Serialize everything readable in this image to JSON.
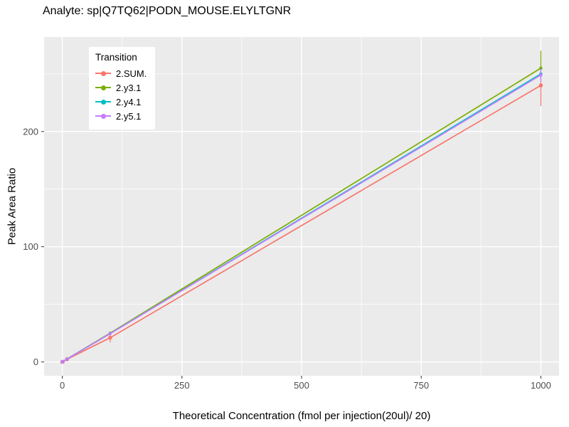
{
  "chart_data": {
    "type": "line",
    "title": "Analyte: sp|Q7TQ62|PODN_MOUSE.ELYLTGNR",
    "xlabel": "Theoretical Concentration (fmol per injection(20ul)/ 20)",
    "ylabel": "Peak Area Ratio",
    "legend_title": "Transition",
    "legend_position": "top-left-inside",
    "grid": true,
    "panel_bg": "#EBEBEB",
    "grid_color": "#FFFFFF",
    "tick_label_color": "#4D4D4D",
    "tick_mark_color": "#333333",
    "xlim": [
      -38,
      1038
    ],
    "ylim": [
      -12,
      282
    ],
    "x_ticks": [
      0,
      250,
      500,
      750,
      1000
    ],
    "y_ticks": [
      0,
      100,
      200
    ],
    "series": [
      {
        "name": "2.SUM.",
        "color": "#F8766D",
        "marker_size": 2.8,
        "points": [
          {
            "x": 0,
            "y": 0
          },
          {
            "x": 1,
            "y": 0.2
          },
          {
            "x": 10,
            "y": 2.3
          },
          {
            "x": 100,
            "y": 21,
            "ylo": 17,
            "yhi": 24
          },
          {
            "x": 1000,
            "y": 240,
            "ylo": 222,
            "yhi": 248
          }
        ]
      },
      {
        "name": "2.y3.1",
        "color": "#7CAE00",
        "marker_size": 2.2,
        "points": [
          {
            "x": 0,
            "y": 0
          },
          {
            "x": 1,
            "y": 0.25
          },
          {
            "x": 10,
            "y": 2.6
          },
          {
            "x": 100,
            "y": 25
          },
          {
            "x": 1000,
            "y": 255,
            "ylo": 246,
            "yhi": 270
          }
        ]
      },
      {
        "name": "2.y4.1",
        "color": "#00BFC4",
        "marker_size": 2.2,
        "points": [
          {
            "x": 0,
            "y": 0
          },
          {
            "x": 1,
            "y": 0.25
          },
          {
            "x": 10,
            "y": 2.5
          },
          {
            "x": 100,
            "y": 24.6
          },
          {
            "x": 1000,
            "y": 250,
            "ylo": 245,
            "yhi": 255
          }
        ]
      },
      {
        "name": "2.y5.1",
        "color": "#C77CFF",
        "marker_size": 2.2,
        "points": [
          {
            "x": 0,
            "y": 0
          },
          {
            "x": 1,
            "y": 0.25
          },
          {
            "x": 10,
            "y": 2.5
          },
          {
            "x": 100,
            "y": 24.5
          },
          {
            "x": 1000,
            "y": 249,
            "ylo": 243,
            "yhi": 254
          }
        ]
      }
    ]
  }
}
